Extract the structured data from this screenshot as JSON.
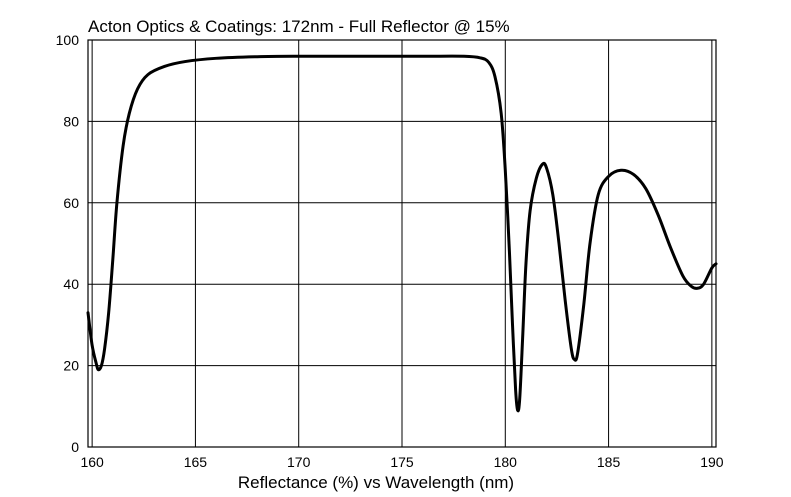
{
  "chart_data": {
    "type": "line",
    "title": "Acton Optics & Coatings:  172nm - Full Reflector @ 15%",
    "xlabel": "Reflectance (%)  vs  Wavelength (nm)",
    "ylabel": "",
    "xlim": [
      159.8,
      190.2
    ],
    "ylim": [
      0,
      100
    ],
    "xticks": [
      160,
      165,
      170,
      175,
      180,
      185,
      190
    ],
    "yticks": [
      0,
      20,
      40,
      60,
      80,
      100
    ],
    "grid": true,
    "series": [
      {
        "values_xy": [
          [
            159.8,
            33
          ],
          [
            160.0,
            25
          ],
          [
            160.2,
            20.5
          ],
          [
            160.3,
            19
          ],
          [
            160.45,
            20
          ],
          [
            160.6,
            24
          ],
          [
            160.8,
            33
          ],
          [
            161.0,
            46
          ],
          [
            161.2,
            60
          ],
          [
            161.5,
            74
          ],
          [
            161.8,
            82
          ],
          [
            162.2,
            88
          ],
          [
            162.7,
            91.5
          ],
          [
            163.5,
            93.5
          ],
          [
            164.5,
            94.7
          ],
          [
            166,
            95.5
          ],
          [
            168,
            95.9
          ],
          [
            170,
            96
          ],
          [
            173,
            96
          ],
          [
            176,
            96
          ],
          [
            178,
            96
          ],
          [
            178.8,
            95.6
          ],
          [
            179.2,
            94.5
          ],
          [
            179.5,
            91
          ],
          [
            179.8,
            82
          ],
          [
            180.0,
            68
          ],
          [
            180.2,
            48
          ],
          [
            180.35,
            30
          ],
          [
            180.5,
            14
          ],
          [
            180.6,
            9
          ],
          [
            180.7,
            12
          ],
          [
            180.85,
            28
          ],
          [
            181.0,
            45
          ],
          [
            181.2,
            58
          ],
          [
            181.5,
            66
          ],
          [
            181.8,
            69.5
          ],
          [
            182.0,
            68.5
          ],
          [
            182.3,
            62
          ],
          [
            182.6,
            50
          ],
          [
            182.9,
            36
          ],
          [
            183.2,
            24
          ],
          [
            183.35,
            21.5
          ],
          [
            183.5,
            23
          ],
          [
            183.8,
            35
          ],
          [
            184.1,
            50
          ],
          [
            184.5,
            62
          ],
          [
            185.0,
            66.5
          ],
          [
            185.6,
            68
          ],
          [
            186.2,
            67
          ],
          [
            186.8,
            63.5
          ],
          [
            187.4,
            57
          ],
          [
            188.0,
            49
          ],
          [
            188.6,
            42
          ],
          [
            189.0,
            39.5
          ],
          [
            189.3,
            39
          ],
          [
            189.6,
            40
          ],
          [
            190.0,
            44
          ],
          [
            190.2,
            45
          ]
        ]
      }
    ]
  }
}
